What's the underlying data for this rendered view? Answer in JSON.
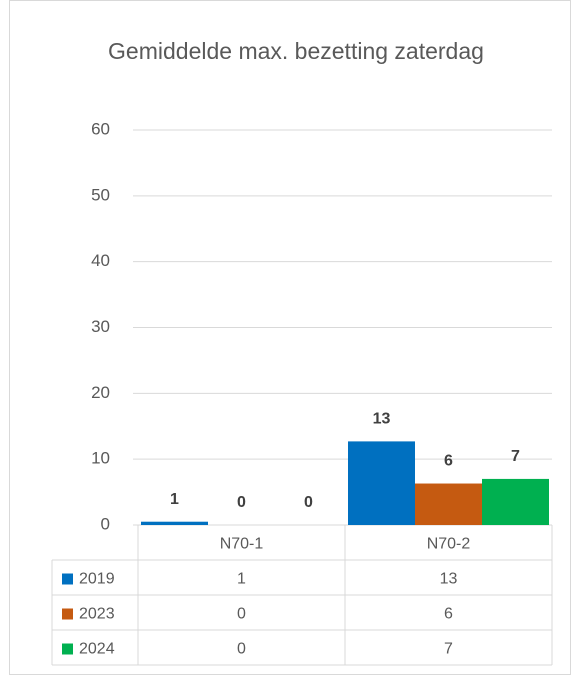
{
  "chart_data": {
    "type": "bar",
    "title": "Gemiddelde max. bezetting zaterdag",
    "categories": [
      "N70-1",
      "N70-2"
    ],
    "series": [
      {
        "name": "2019",
        "color": "#0070c0",
        "values": [
          0.5,
          12.7
        ],
        "value_labels": [
          "1",
          "13"
        ]
      },
      {
        "name": "2023",
        "color": "#c55a11",
        "values": [
          0,
          6.3
        ],
        "value_labels": [
          "0",
          "6"
        ]
      },
      {
        "name": "2024",
        "color": "#00b050",
        "values": [
          0,
          7.0
        ],
        "value_labels": [
          "0",
          "7"
        ]
      }
    ],
    "ylim": [
      0,
      60
    ],
    "yticks": [
      0,
      10,
      20,
      30,
      40,
      50,
      60
    ],
    "grid": true,
    "data_table": true
  }
}
